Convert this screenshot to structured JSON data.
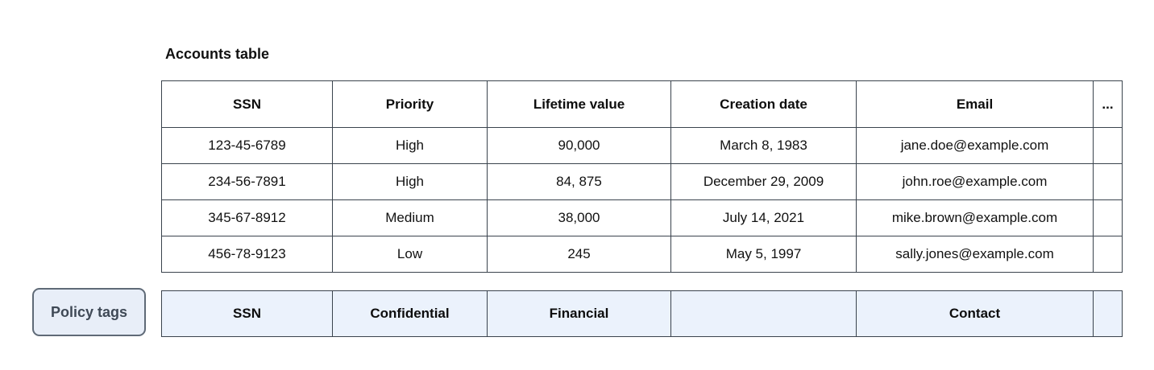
{
  "accounts_table": {
    "title": "Accounts table",
    "columns": [
      "SSN",
      "Priority",
      "Lifetime value",
      "Creation date",
      "Email",
      "..."
    ],
    "rows": [
      [
        "123-45-6789",
        "High",
        "90,000",
        "March 8, 1983",
        "jane.doe@example.com",
        ""
      ],
      [
        "234-56-7891",
        "High",
        "84, 875",
        "December 29, 2009",
        "john.roe@example.com",
        ""
      ],
      [
        "345-67-8912",
        "Medium",
        "38,000",
        "July 14, 2021",
        "mike.brown@example.com",
        ""
      ],
      [
        "456-78-9123",
        "Low",
        "245",
        "May 5, 1997",
        "sally.jones@example.com",
        ""
      ]
    ]
  },
  "policy_tags": {
    "button_label": "Policy tags",
    "tags": [
      "SSN",
      "Confidential",
      "Financial",
      "",
      "Contact",
      ""
    ]
  },
  "colors": {
    "table_border": "#3a434d",
    "policy_row_background": "#ebf2fc",
    "button_background": "#e8eef8",
    "button_border": "#5f6a77",
    "button_text": "#3f4956",
    "text": "#111111",
    "page_background": "#ffffff"
  }
}
